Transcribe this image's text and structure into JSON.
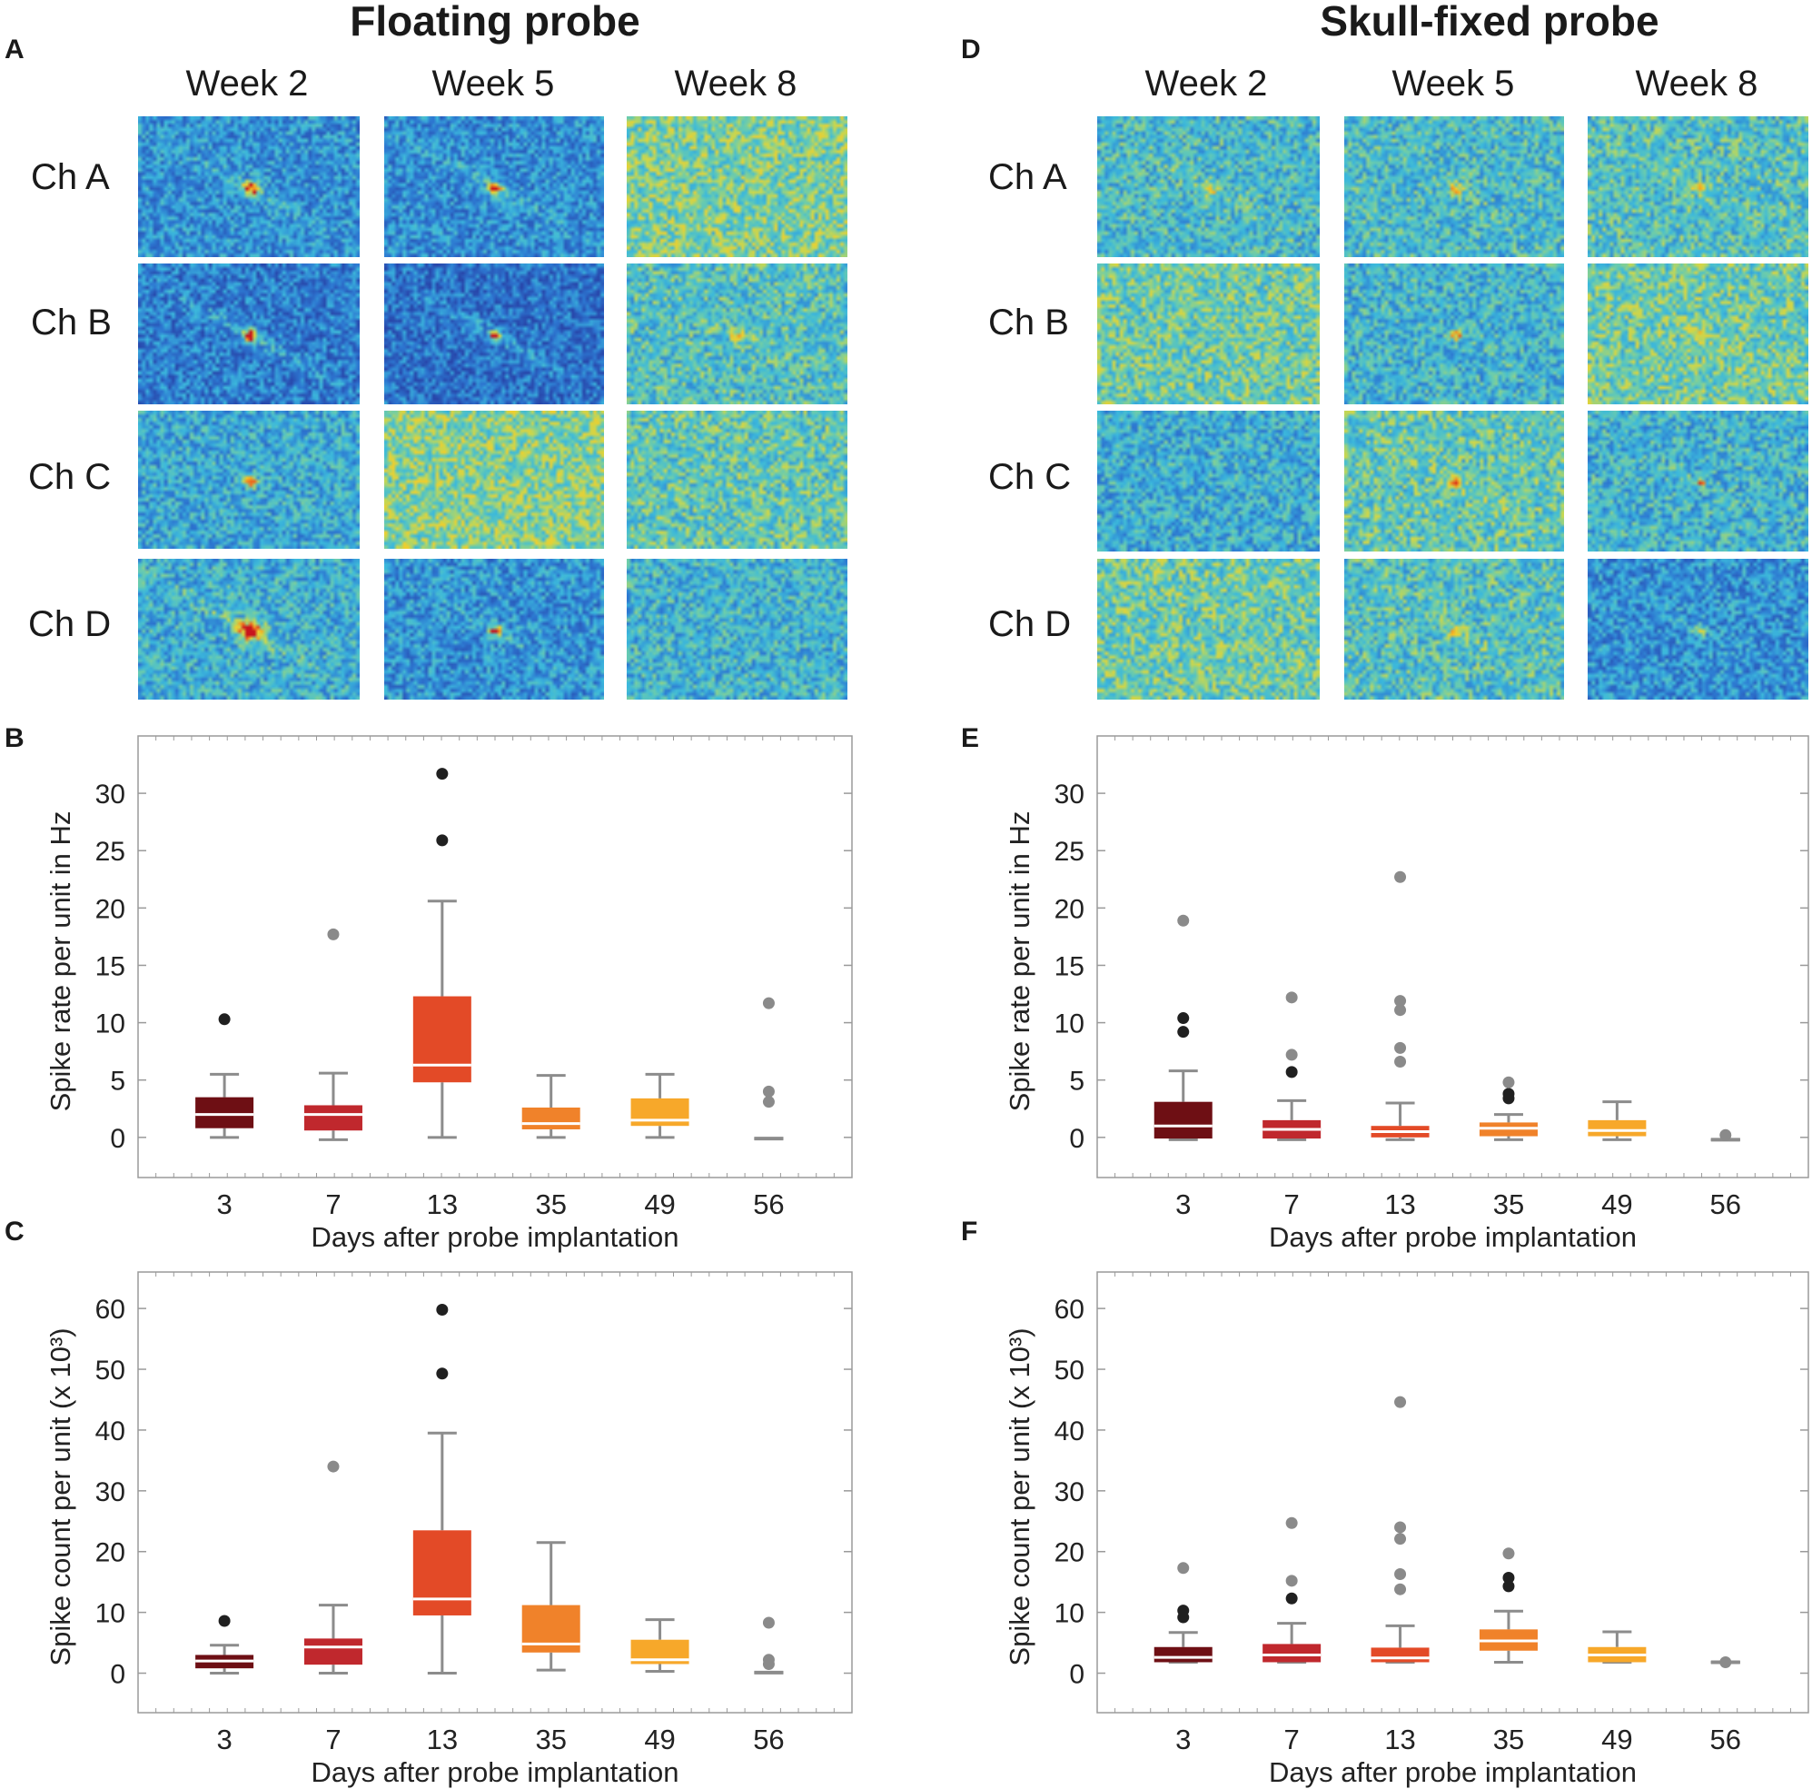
{
  "colors": {
    "day3": "#6e0f14",
    "day7": "#c0282d",
    "day13": "#e34a27",
    "day35": "#f0822a",
    "day49": "#f7a82a",
    "day56": "#8c8c8c",
    "outlier_dark": "#202020",
    "outlier_light": "#8a8a8a",
    "whisker": "#8c8c8c",
    "frame": "#9a9a9a"
  },
  "titles": {
    "left": "Floating probe",
    "right": "Skull-fixed probe"
  },
  "panels": {
    "A": "A",
    "B": "B",
    "C": "C",
    "D": "D",
    "E": "E",
    "F": "F"
  },
  "weeks": [
    "Week 2",
    "Week 5",
    "Week 8"
  ],
  "channels": [
    "Ch A",
    "Ch B",
    "Ch C",
    "Ch D"
  ],
  "heatmaps": {
    "A": [
      [
        {
          "bg": 0.3,
          "peak": 0.95,
          "spread": 0.9,
          "streak": 0.6
        },
        {
          "bg": 0.28,
          "peak": 0.92,
          "spread": 0.6,
          "streak": 0.8
        },
        {
          "bg": 0.58,
          "peak": 0.0,
          "spread": 0.0,
          "streak": 0.0
        }
      ],
      [
        {
          "bg": 0.22,
          "peak": 0.98,
          "spread": 0.7,
          "streak": 0.9
        },
        {
          "bg": 0.18,
          "peak": 0.98,
          "spread": 0.5,
          "streak": 0.9
        },
        {
          "bg": 0.48,
          "peak": 0.85,
          "spread": 0.6,
          "streak": 0.3
        }
      ],
      [
        {
          "bg": 0.38,
          "peak": 0.97,
          "spread": 0.6,
          "streak": 0.2
        },
        {
          "bg": 0.6,
          "peak": 0.0,
          "spread": 0.0,
          "streak": 0.0
        },
        {
          "bg": 0.52,
          "peak": 0.0,
          "spread": 0.0,
          "streak": 0.0
        }
      ],
      [
        {
          "bg": 0.4,
          "peak": 0.97,
          "spread": 1.4,
          "streak": 0.7
        },
        {
          "bg": 0.3,
          "peak": 0.98,
          "spread": 0.5,
          "streak": 0.5
        },
        {
          "bg": 0.42,
          "peak": 0.0,
          "spread": 0.0,
          "streak": 0.0
        }
      ]
    ],
    "D": [
      [
        {
          "bg": 0.45,
          "peak": 0.72,
          "spread": 0.8,
          "streak": 0.4
        },
        {
          "bg": 0.45,
          "peak": 0.78,
          "spread": 0.6,
          "streak": 0.2
        },
        {
          "bg": 0.48,
          "peak": 0.88,
          "spread": 0.6,
          "streak": 0.2
        }
      ],
      [
        {
          "bg": 0.55,
          "peak": 0.0,
          "spread": 0.0,
          "streak": 0.0
        },
        {
          "bg": 0.42,
          "peak": 0.8,
          "spread": 0.6,
          "streak": 0.2
        },
        {
          "bg": 0.55,
          "peak": 0.86,
          "spread": 0.7,
          "streak": 0.3
        }
      ],
      [
        {
          "bg": 0.4,
          "peak": 0.0,
          "spread": 0.0,
          "streak": 0.0
        },
        {
          "bg": 0.52,
          "peak": 0.78,
          "spread": 0.6,
          "streak": 0.4
        },
        {
          "bg": 0.42,
          "peak": 0.86,
          "spread": 0.5,
          "streak": 0.2
        }
      ],
      [
        {
          "bg": 0.55,
          "peak": 0.0,
          "spread": 0.0,
          "streak": 0.0
        },
        {
          "bg": 0.48,
          "peak": 0.74,
          "spread": 0.6,
          "streak": 0.4
        },
        {
          "bg": 0.3,
          "peak": 0.82,
          "spread": 0.5,
          "streak": 0.2
        }
      ]
    ]
  },
  "chart_data": [
    {
      "id": "B",
      "type": "box",
      "xlabel": "Days after probe implantation",
      "ylabel": "Spike rate per unit in Hz",
      "ylim": [
        -3.5,
        35
      ],
      "yticks": [
        0,
        5,
        10,
        15,
        20,
        25,
        30
      ],
      "categories": [
        "3",
        "7",
        "13",
        "35",
        "49",
        "56"
      ],
      "boxes": [
        {
          "day": "3",
          "q1": 0.8,
          "median": 2.0,
          "q3": 3.5,
          "low": 0.0,
          "high": 5.5,
          "outliers": [
            {
              "v": 10.3,
              "dark": true
            }
          ]
        },
        {
          "day": "7",
          "q1": 0.6,
          "median": 2.0,
          "q3": 2.8,
          "low": -0.2,
          "high": 5.6,
          "outliers": [
            {
              "v": 17.7,
              "dark": false
            }
          ]
        },
        {
          "day": "13",
          "q1": 4.8,
          "median": 6.3,
          "q3": 12.3,
          "low": 0.0,
          "high": 20.6,
          "outliers": [
            {
              "v": 25.9,
              "dark": true
            },
            {
              "v": 31.7,
              "dark": true
            }
          ]
        },
        {
          "day": "35",
          "q1": 0.7,
          "median": 1.2,
          "q3": 2.6,
          "low": 0.0,
          "high": 5.4,
          "outliers": []
        },
        {
          "day": "49",
          "q1": 1.0,
          "median": 1.5,
          "q3": 3.4,
          "low": 0.0,
          "high": 5.5,
          "outliers": []
        },
        {
          "day": "56",
          "q1": -0.1,
          "median": -0.1,
          "q3": -0.1,
          "low": -0.1,
          "high": -0.1,
          "outliers": [
            {
              "v": 3.1,
              "dark": false
            },
            {
              "v": 4.0,
              "dark": false
            },
            {
              "v": 11.7,
              "dark": false
            }
          ]
        }
      ]
    },
    {
      "id": "C",
      "type": "box",
      "xlabel": "Days after probe implantation",
      "ylabel": "Spike count per unit (x 10³)",
      "ylim": [
        -6.5,
        66
      ],
      "yticks": [
        0,
        10,
        20,
        30,
        40,
        50,
        60
      ],
      "categories": [
        "3",
        "7",
        "13",
        "35",
        "49",
        "56"
      ],
      "boxes": [
        {
          "day": "3",
          "q1": 0.8,
          "median": 2.0,
          "q3": 3.0,
          "low": 0.0,
          "high": 4.6,
          "outliers": [
            {
              "v": 8.6,
              "dark": true
            }
          ]
        },
        {
          "day": "7",
          "q1": 1.4,
          "median": 4.3,
          "q3": 5.7,
          "low": 0.0,
          "high": 11.2,
          "outliers": [
            {
              "v": 34.0,
              "dark": false
            }
          ]
        },
        {
          "day": "13",
          "q1": 9.5,
          "median": 12.2,
          "q3": 23.5,
          "low": 0.0,
          "high": 39.5,
          "outliers": [
            {
              "v": 49.3,
              "dark": true
            },
            {
              "v": 59.8,
              "dark": true
            }
          ]
        },
        {
          "day": "35",
          "q1": 3.4,
          "median": 4.8,
          "q3": 11.2,
          "low": 0.5,
          "high": 21.5,
          "outliers": []
        },
        {
          "day": "49",
          "q1": 1.5,
          "median": 2.2,
          "q3": 5.5,
          "low": 0.3,
          "high": 8.8,
          "outliers": []
        },
        {
          "day": "56",
          "q1": 0.1,
          "median": 0.1,
          "q3": 0.1,
          "low": 0.1,
          "high": 0.1,
          "outliers": [
            {
              "v": 1.5,
              "dark": false
            },
            {
              "v": 2.2,
              "dark": false
            },
            {
              "v": 8.3,
              "dark": false
            }
          ]
        }
      ]
    },
    {
      "id": "E",
      "type": "box",
      "xlabel": "Days after probe implantation",
      "ylabel": "Spike rate per unit in Hz",
      "ylim": [
        -3.5,
        35
      ],
      "yticks": [
        0,
        5,
        10,
        15,
        20,
        25,
        30
      ],
      "categories": [
        "3",
        "7",
        "13",
        "35",
        "49",
        "56"
      ],
      "boxes": [
        {
          "day": "3",
          "q1": -0.1,
          "median": 1.0,
          "q3": 3.1,
          "low": -0.2,
          "high": 5.8,
          "outliers": [
            {
              "v": 9.2,
              "dark": true
            },
            {
              "v": 10.4,
              "dark": true
            },
            {
              "v": 18.9,
              "dark": false
            }
          ]
        },
        {
          "day": "7",
          "q1": -0.1,
          "median": 0.7,
          "q3": 1.5,
          "low": -0.2,
          "high": 3.2,
          "outliers": [
            {
              "v": 5.7,
              "dark": true
            },
            {
              "v": 7.2,
              "dark": false
            },
            {
              "v": 12.2,
              "dark": false
            }
          ]
        },
        {
          "day": "13",
          "q1": 0.0,
          "median": 0.5,
          "q3": 1.0,
          "low": -0.2,
          "high": 3.0,
          "outliers": [
            {
              "v": 6.6,
              "dark": false
            },
            {
              "v": 7.8,
              "dark": false
            },
            {
              "v": 11.1,
              "dark": false
            },
            {
              "v": 11.9,
              "dark": false
            },
            {
              "v": 22.7,
              "dark": false
            }
          ]
        },
        {
          "day": "35",
          "q1": 0.1,
          "median": 0.8,
          "q3": 1.3,
          "low": -0.2,
          "high": 2.0,
          "outliers": [
            {
              "v": 3.4,
              "dark": true
            },
            {
              "v": 3.8,
              "dark": true
            },
            {
              "v": 4.8,
              "dark": false
            }
          ]
        },
        {
          "day": "49",
          "q1": 0.1,
          "median": 0.6,
          "q3": 1.5,
          "low": -0.2,
          "high": 3.1,
          "outliers": []
        },
        {
          "day": "56",
          "q1": -0.2,
          "median": -0.2,
          "q3": -0.2,
          "low": -0.2,
          "high": -0.2,
          "outliers": [
            {
              "v": 0.2,
              "dark": false
            }
          ]
        }
      ]
    },
    {
      "id": "F",
      "type": "box",
      "xlabel": "Days after probe implantation",
      "ylabel": "Spike count per unit (x 10³)",
      "ylim": [
        -6.5,
        66
      ],
      "yticks": [
        0,
        10,
        20,
        30,
        40,
        50,
        60
      ],
      "categories": [
        "3",
        "7",
        "13",
        "35",
        "49",
        "56"
      ],
      "boxes": [
        {
          "day": "3",
          "q1": 1.8,
          "median": 2.6,
          "q3": 4.3,
          "low": 1.8,
          "high": 6.7,
          "outliers": [
            {
              "v": 9.2,
              "dark": true
            },
            {
              "v": 10.3,
              "dark": true
            },
            {
              "v": 17.3,
              "dark": false
            }
          ]
        },
        {
          "day": "7",
          "q1": 1.8,
          "median": 3.0,
          "q3": 4.8,
          "low": 1.8,
          "high": 8.2,
          "outliers": [
            {
              "v": 12.3,
              "dark": true
            },
            {
              "v": 15.2,
              "dark": false
            },
            {
              "v": 24.7,
              "dark": false
            }
          ]
        },
        {
          "day": "13",
          "q1": 1.8,
          "median": 2.5,
          "q3": 4.2,
          "low": 1.8,
          "high": 7.8,
          "outliers": [
            {
              "v": 13.8,
              "dark": false
            },
            {
              "v": 16.3,
              "dark": false
            },
            {
              "v": 22.1,
              "dark": false
            },
            {
              "v": 24.0,
              "dark": false
            },
            {
              "v": 44.6,
              "dark": false
            }
          ]
        },
        {
          "day": "35",
          "q1": 3.7,
          "median": 5.3,
          "q3": 7.2,
          "low": 1.8,
          "high": 10.2,
          "outliers": [
            {
              "v": 14.3,
              "dark": true
            },
            {
              "v": 15.7,
              "dark": true
            },
            {
              "v": 19.7,
              "dark": false
            }
          ]
        },
        {
          "day": "49",
          "q1": 1.8,
          "median": 3.0,
          "q3": 4.3,
          "low": 1.8,
          "high": 6.8,
          "outliers": []
        },
        {
          "day": "56",
          "q1": 1.8,
          "median": 1.8,
          "q3": 1.8,
          "low": 1.8,
          "high": 1.8,
          "outliers": [
            {
              "v": 1.8,
              "dark": false
            }
          ]
        }
      ]
    }
  ]
}
